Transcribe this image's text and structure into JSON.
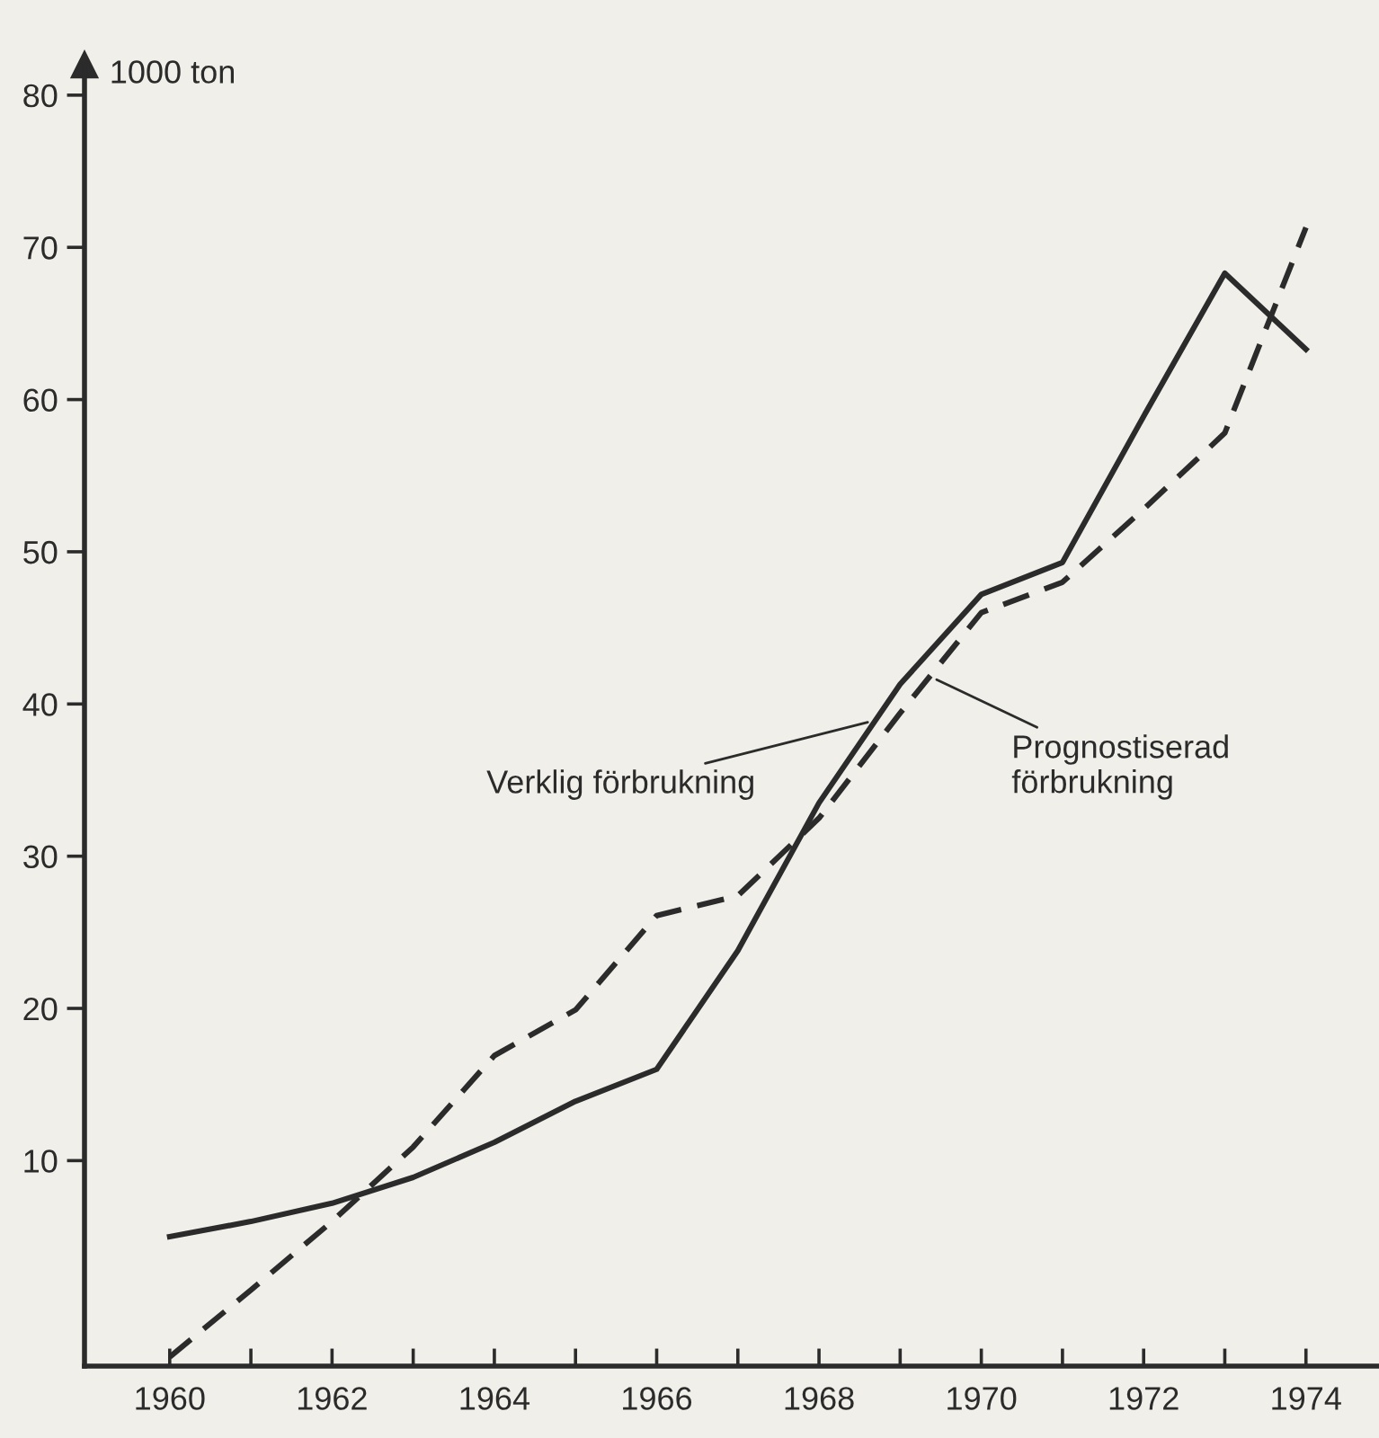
{
  "chart_data": {
    "type": "line",
    "ylabel": "1000 ton",
    "x": [
      1960,
      1961,
      1962,
      1963,
      1964,
      1965,
      1966,
      1967,
      1968,
      1969,
      1970,
      1971,
      1972,
      1973,
      1974
    ],
    "series": [
      {
        "color": "#2b2b2b",
        "line_style": "solid",
        "values": [
          5.0,
          6.0,
          7.2,
          8.9,
          11.2,
          13.9,
          16.0,
          23.8,
          33.5,
          41.3,
          47.2,
          49.3,
          58.9,
          68.3,
          63.3
        ]
      },
      {
        "color": "#2b2b2b",
        "line_style": "dashed",
        "values": [
          -2.9,
          1.5,
          6.0,
          10.9,
          16.9,
          19.9,
          26.1,
          27.4,
          32.5,
          39.4,
          46.0,
          48.0,
          52.8,
          57.8,
          71.3
        ]
      }
    ],
    "annotations": [
      {
        "text": "Verklig förbrukning",
        "x": 1968.6,
        "y": 38.8
      },
      {
        "text": "Prognostiserad\nförbrukning",
        "x": 1969.45,
        "y": 41.6
      }
    ],
    "xlim": [
      1958.95,
      1974.9
    ],
    "ylim": [
      -3.5,
      82
    ],
    "xticks": [
      {
        "value": 1960,
        "label": "1960"
      },
      {
        "value": 1961,
        "label": null
      },
      {
        "value": 1962,
        "label": "1962"
      },
      {
        "value": 1963,
        "label": null
      },
      {
        "value": 1964,
        "label": "1964"
      },
      {
        "value": 1965,
        "label": null
      },
      {
        "value": 1966,
        "label": "1966"
      },
      {
        "value": 1967,
        "label": null
      },
      {
        "value": 1968,
        "label": "1968"
      },
      {
        "value": 1969,
        "label": null
      },
      {
        "value": 1970,
        "label": "1970"
      },
      {
        "value": 1971,
        "label": null
      },
      {
        "value": 1972,
        "label": "1972"
      },
      {
        "value": 1973,
        "label": null
      },
      {
        "value": 1974,
        "label": "1974"
      }
    ],
    "yticks": [
      10,
      20,
      30,
      40,
      50,
      60,
      70,
      80
    ],
    "grid": false,
    "marker": "none"
  }
}
